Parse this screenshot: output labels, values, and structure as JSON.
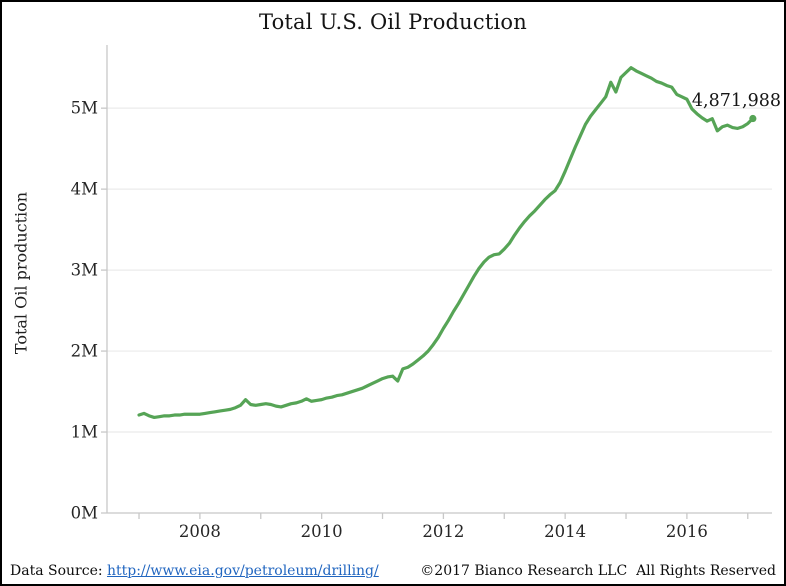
{
  "title": "Total U.S. Oil Production",
  "y_axis_label": "Total Oil production",
  "annotation": {
    "label": "4,871,988"
  },
  "footer": {
    "source_prefix": "Data Source: ",
    "source_link": "http://www.eia.gov/petroleum/drilling/",
    "copyright": "©2017 Bianco Research LLC  All Rights Reserved"
  },
  "colors": {
    "line": "#56a456",
    "marker": "#56a456",
    "link": "#2166c0",
    "grid": "#ebebeb",
    "axis": "#c8c8c8",
    "text": "#262626"
  },
  "chart_data": {
    "type": "line",
    "title": "Total U.S. Oil Production",
    "xlabel": "",
    "ylabel": "Total Oil production",
    "grid": "horizontal-light",
    "legend": "none",
    "frequency": "monthly",
    "x_start": "2007-01",
    "x_end": "2017-02",
    "xlim_years": [
      2006.474,
      2017.398
    ],
    "ylim_millions": [
      0,
      5.78
    ],
    "x_tick_years": [
      2008,
      2010,
      2012,
      2014,
      2016
    ],
    "x_tick_labels": [
      "2008",
      "2010",
      "2012",
      "2014",
      "2016"
    ],
    "x_minor_tick_years": [
      2007,
      2008,
      2009,
      2010,
      2011,
      2012,
      2013,
      2014,
      2015,
      2016,
      2017
    ],
    "y_ticks_millions": [
      0,
      1,
      2,
      3,
      4,
      5
    ],
    "y_tick_labels": [
      "0M",
      "1M",
      "2M",
      "3M",
      "4M",
      "5M"
    ],
    "series": [
      {
        "name": "Total U.S. Oil Production",
        "values_unit": "million barrels",
        "values_millions": [
          1.21,
          1.23,
          1.2,
          1.18,
          1.19,
          1.2,
          1.2,
          1.21,
          1.21,
          1.22,
          1.22,
          1.22,
          1.22,
          1.23,
          1.24,
          1.25,
          1.26,
          1.27,
          1.28,
          1.3,
          1.33,
          1.4,
          1.34,
          1.33,
          1.34,
          1.35,
          1.34,
          1.32,
          1.31,
          1.33,
          1.35,
          1.36,
          1.38,
          1.41,
          1.38,
          1.39,
          1.4,
          1.42,
          1.43,
          1.45,
          1.46,
          1.48,
          1.5,
          1.52,
          1.54,
          1.57,
          1.6,
          1.63,
          1.66,
          1.68,
          1.69,
          1.63,
          1.78,
          1.8,
          1.84,
          1.89,
          1.94,
          2.0,
          2.08,
          2.17,
          2.28,
          2.38,
          2.49,
          2.59,
          2.7,
          2.81,
          2.92,
          3.02,
          3.1,
          3.16,
          3.19,
          3.2,
          3.26,
          3.33,
          3.43,
          3.52,
          3.6,
          3.67,
          3.73,
          3.8,
          3.87,
          3.93,
          3.98,
          4.08,
          4.22,
          4.37,
          4.52,
          4.66,
          4.8,
          4.9,
          4.98,
          5.06,
          5.14,
          5.32,
          5.2,
          5.38,
          5.44,
          5.5,
          5.46,
          5.43,
          5.4,
          5.37,
          5.33,
          5.31,
          5.28,
          5.26,
          5.17,
          5.14,
          5.11,
          4.99,
          4.93,
          4.88,
          4.84,
          4.87,
          4.72,
          4.77,
          4.79,
          4.76,
          4.75,
          4.77,
          4.81,
          4.871988
        ]
      }
    ],
    "last_point": {
      "x": "2017-02",
      "value": 4871988,
      "label": "4,871,988"
    }
  }
}
